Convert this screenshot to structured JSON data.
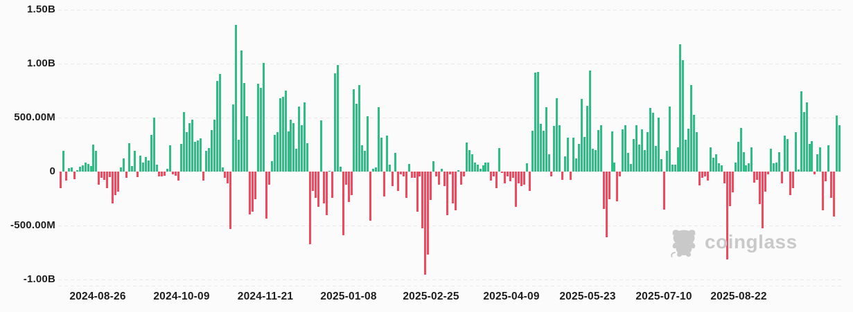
{
  "watermark": {
    "brand_text": "coinglass"
  },
  "chart_data": {
    "type": "bar",
    "title": "",
    "xlabel": "",
    "ylabel": "",
    "unit": "USD",
    "legend": "none",
    "grid": "horizontal-dashed",
    "x_axis": {
      "tick_labels": [
        "2024-08-26",
        "2024-10-09",
        "2024-11-21",
        "2025-01-08",
        "2025-02-25",
        "2025-04-09",
        "2025-05-23",
        "2025-07-10",
        "2025-08-22"
      ]
    },
    "y_axis": {
      "tick_labels": [
        "1.50B",
        "1.00B",
        "500.00M",
        "0",
        "-500.00M",
        "-1.00B"
      ],
      "tick_values_m": [
        1500,
        1000,
        500,
        0,
        -500,
        -1000
      ],
      "range_m": [
        -1100,
        1550
      ]
    },
    "colors": {
      "positive": "#2ebd85",
      "negative": "#f5475d",
      "grid": "#e7e7e7",
      "axis_text": "#1d1d1d",
      "watermark": "#c9c9c9",
      "background": "#fbfbfb"
    },
    "series": [
      {
        "name": "daily-net-flow-usd-millions",
        "values_m": [
          -156,
          194,
          -86,
          32,
          41,
          -73,
          13,
          45,
          60,
          86,
          73,
          50,
          253,
          194,
          -123,
          -58,
          -80,
          -156,
          -54,
          -296,
          -220,
          -188,
          39,
          125,
          -58,
          262,
          50,
          190,
          -52,
          147,
          82,
          136,
          104,
          342,
          500,
          65,
          -48,
          -43,
          -37,
          28,
          244,
          -26,
          -37,
          -86,
          255,
          553,
          367,
          449,
          482,
          277,
          287,
          305,
          -84,
          194,
          216,
          385,
          482,
          838,
          907,
          39,
          -58,
          -112,
          -534,
          622,
          1361,
          293,
          1123,
          818,
          510,
          -400,
          -371,
          -254,
          816,
          773,
          1005,
          -437,
          -123,
          99,
          342,
          363,
          677,
          692,
          748,
          374,
          482,
          449,
          212,
          605,
          432,
          640,
          266,
          -674,
          -177,
          -242,
          -328,
          475,
          -296,
          -404,
          9,
          -242,
          913,
          985,
          43,
          -588,
          -123,
          -285,
          -220,
          762,
          626,
          799,
          244,
          190,
          514,
          -458,
          28,
          39,
          594,
          313,
          -231,
          335,
          65,
          -134,
          173,
          -177,
          -26,
          -48,
          -242,
          71,
          -58,
          -58,
          -372,
          -48,
          -523,
          -956,
          -772,
          -264,
          93,
          -48,
          -123,
          28,
          -134,
          -404,
          -26,
          -296,
          -361,
          13,
          -123,
          -48,
          270,
          200,
          158,
          82,
          65,
          28,
          60,
          86,
          82,
          -86,
          -48,
          -156,
          218,
          -15,
          -108,
          -48,
          -91,
          -58,
          -324,
          -108,
          -134,
          -123,
          78,
          -177,
          378,
          918,
          925,
          443,
          378,
          594,
          158,
          -48,
          421,
          677,
          432,
          -80,
          140,
          313,
          -80,
          313,
          119,
          259,
          670,
          320,
          612,
          936,
          212,
          200,
          385,
          432,
          -346,
          -610,
          -259,
          374,
          86,
          -274,
          -43,
          389,
          432,
          173,
          71,
          302,
          432,
          249,
          389,
          200,
          363,
          590,
          547,
          234,
          497,
          114,
          -350,
          190,
          605,
          65,
          65,
          223,
          1180,
          1034,
          298,
          396,
          799,
          525,
          367,
          -130,
          -58,
          -43,
          -86,
          223,
          130,
          158,
          76,
          60,
          -112,
          -816,
          -318,
          -195,
          86,
          277,
          407,
          179,
          60,
          76,
          227,
          -101,
          -75,
          -303,
          -523,
          -188,
          -26,
          212,
          78,
          82,
          179,
          -112,
          331,
          302,
          -220,
          -156,
          367,
          17,
          746,
          551,
          644,
          255,
          281,
          -26,
          158,
          227,
          -361,
          -91,
          244,
          -242,
          -415,
          519,
          432
        ]
      }
    ]
  }
}
